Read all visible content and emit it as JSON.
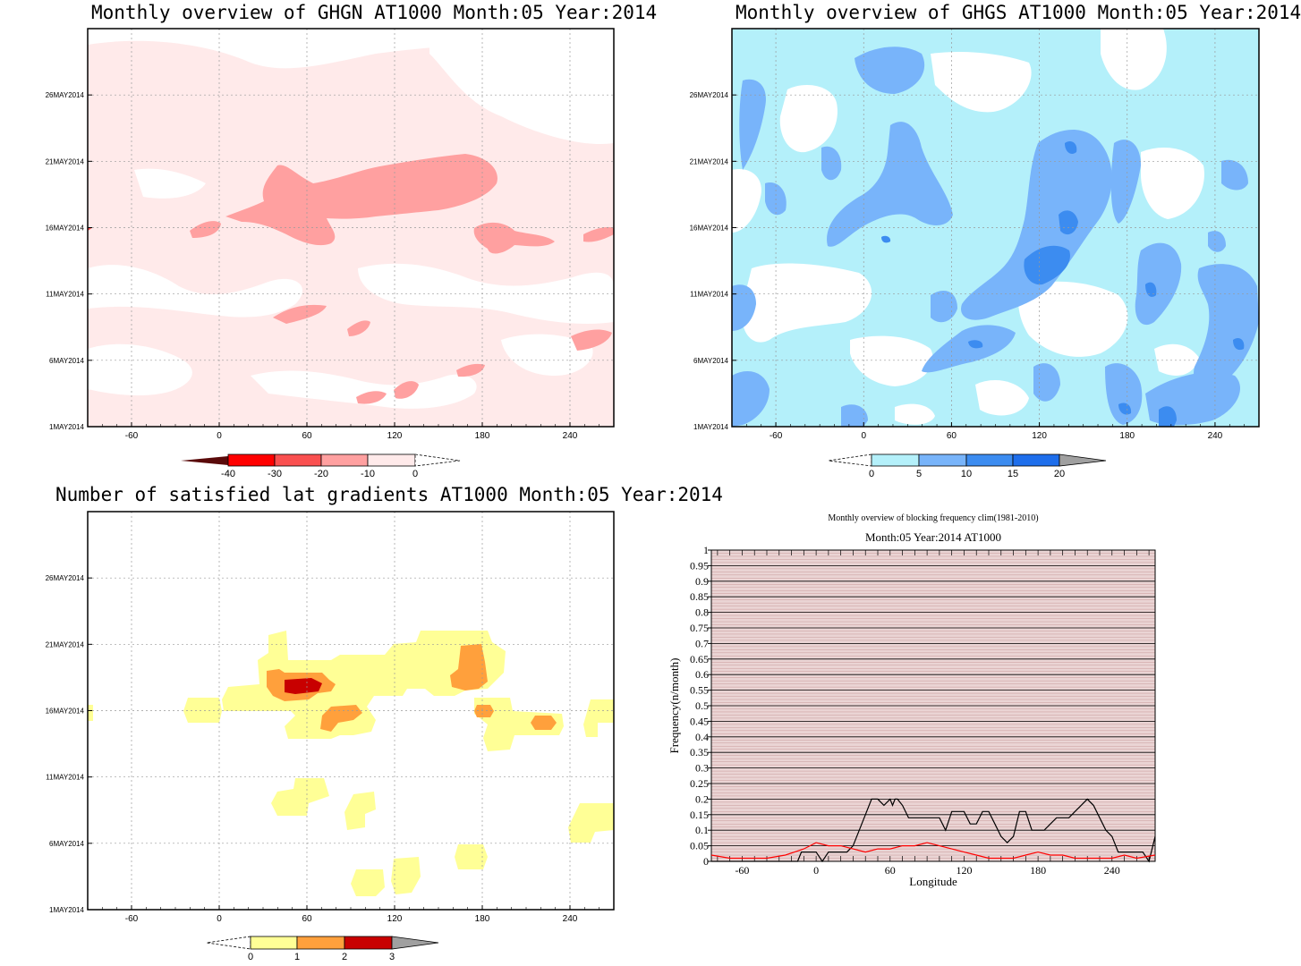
{
  "panels": {
    "ghgn": {
      "title": "Monthly overview of GHGN AT1000 Month:05 Year:2014",
      "ytick_labels": [
        "26MAY2014",
        "21MAY2014",
        "16MAY2014",
        "11MAY2014",
        "6MAY2014",
        "1MAY2014"
      ],
      "xtick_labels": [
        "-60",
        "0",
        "60",
        "120",
        "180",
        "240"
      ],
      "colorbar_labels": [
        "-40",
        "-30",
        "-20",
        "-10",
        "0"
      ],
      "colors": [
        "#5a0a0a",
        "#ff0000",
        "#fa5050",
        "#ffa0a0",
        "#ffeaea"
      ]
    },
    "ghgs": {
      "title": "Monthly overview of GHGS AT1000 Month:05 Year:2014",
      "ytick_labels": [
        "26MAY2014",
        "21MAY2014",
        "16MAY2014",
        "11MAY2014",
        "6MAY2014",
        "1MAY2014"
      ],
      "xtick_labels": [
        "-60",
        "0",
        "60",
        "120",
        "180",
        "240"
      ],
      "colorbar_labels": [
        "0",
        "5",
        "10",
        "15",
        "20"
      ],
      "colors": [
        "#b4f0fa",
        "#78b4fa",
        "#3c8cf0",
        "#1e6eeb",
        "#a0a0a0"
      ]
    },
    "lat_grad": {
      "title": "Number of satisfied lat gradients AT1000 Month:05 Year:2014",
      "ytick_labels": [
        "26MAY2014",
        "21MAY2014",
        "16MAY2014",
        "11MAY2014",
        "6MAY2014",
        "1MAY2014"
      ],
      "xtick_labels": [
        "-60",
        "0",
        "60",
        "120",
        "180",
        "240"
      ],
      "colorbar_labels": [
        "0",
        "1",
        "2",
        "3"
      ],
      "colors": [
        "#ffff96",
        "#ffa03c",
        "#c80000",
        "#a0a0a0"
      ]
    },
    "blocking": {
      "title": "Monthly overview of blocking frequency clim(1981-2010)",
      "subtitle": "Month:05 Year:2014  AT1000",
      "xlabel": "Longitude",
      "ylabel": "Frequency(n/month)"
    }
  },
  "chart_data": [
    {
      "type": "heatmap",
      "title": "Monthly overview of GHGN AT1000 Month:05 Year:2014",
      "x_range": [
        -90,
        270
      ],
      "y_range": [
        "1MAY2014",
        "31MAY2014"
      ],
      "levels": [
        -40,
        -30,
        -20,
        -10,
        0
      ],
      "note": "Mostly 0 to -10 over the domain; -10 to -20 band around 16-20 May from 20 to 200 longitude"
    },
    {
      "type": "heatmap",
      "title": "Monthly overview of GHGS AT1000 Month:05 Year:2014",
      "x_range": [
        -90,
        270
      ],
      "y_range": [
        "1MAY2014",
        "31MAY2014"
      ],
      "levels": [
        0,
        5,
        10,
        15,
        20
      ]
    },
    {
      "type": "heatmap",
      "title": "Number of satisfied lat gradients AT1000 Month:05 Year:2014",
      "x_range": [
        -90,
        270
      ],
      "y_range": [
        "1MAY2014",
        "31MAY2014"
      ],
      "levels": [
        0,
        1,
        2,
        3
      ]
    },
    {
      "type": "line",
      "title": "Monthly overview of blocking frequency clim(1981-2010)",
      "subtitle": "Month:05 Year:2014  AT1000",
      "xlabel": "Longitude",
      "ylabel": "Frequency(n/month)",
      "xlim": [
        -85,
        275
      ],
      "ylim": [
        0,
        1
      ],
      "xticks": [
        -60,
        0,
        60,
        120,
        180,
        240
      ],
      "yticks": [
        0,
        0.05,
        0.1,
        0.15,
        0.2,
        0.25,
        0.3,
        0.35,
        0.4,
        0.45,
        0.5,
        0.55,
        0.6,
        0.65,
        0.7,
        0.75,
        0.8,
        0.85,
        0.9,
        0.95,
        1
      ],
      "series": [
        {
          "color": "#000000",
          "x": [
            -85,
            -15,
            -12,
            -5,
            0,
            5,
            10,
            15,
            20,
            25,
            30,
            35,
            40,
            45,
            50,
            55,
            60,
            62,
            64,
            66,
            70,
            75,
            80,
            85,
            90,
            95,
            100,
            105,
            110,
            115,
            120,
            125,
            130,
            135,
            140,
            145,
            150,
            155,
            160,
            165,
            170,
            175,
            180,
            185,
            190,
            195,
            200,
            205,
            210,
            215,
            220,
            225,
            230,
            235,
            240,
            245,
            250,
            255,
            260,
            265,
            270,
            275
          ],
          "y": [
            0,
            0,
            0.03,
            0.03,
            0.03,
            0,
            0.03,
            0.03,
            0.03,
            0.03,
            0.05,
            0.1,
            0.15,
            0.2,
            0.2,
            0.18,
            0.2,
            0.18,
            0.2,
            0.2,
            0.18,
            0.14,
            0.14,
            0.14,
            0.14,
            0.14,
            0.14,
            0.1,
            0.16,
            0.16,
            0.16,
            0.12,
            0.12,
            0.16,
            0.16,
            0.12,
            0.08,
            0.06,
            0.08,
            0.16,
            0.16,
            0.1,
            0.1,
            0.1,
            0.12,
            0.14,
            0.14,
            0.14,
            0.16,
            0.18,
            0.2,
            0.18,
            0.14,
            0.1,
            0.08,
            0.03,
            0.03,
            0.03,
            0.03,
            0.03,
            0,
            0.08
          ]
        },
        {
          "color": "#ff0000",
          "x": [
            -85,
            -70,
            -55,
            -40,
            -25,
            -10,
            0,
            10,
            20,
            30,
            40,
            50,
            60,
            70,
            80,
            90,
            100,
            110,
            120,
            130,
            140,
            150,
            160,
            170,
            180,
            190,
            200,
            210,
            220,
            230,
            240,
            250,
            260,
            275
          ],
          "y": [
            0.02,
            0.01,
            0.01,
            0.01,
            0.02,
            0.04,
            0.06,
            0.05,
            0.05,
            0.04,
            0.03,
            0.04,
            0.04,
            0.05,
            0.05,
            0.06,
            0.05,
            0.04,
            0.03,
            0.02,
            0.01,
            0.01,
            0.01,
            0.02,
            0.03,
            0.02,
            0.02,
            0.01,
            0.01,
            0.01,
            0.01,
            0.02,
            0.01,
            0.02
          ]
        }
      ]
    }
  ]
}
